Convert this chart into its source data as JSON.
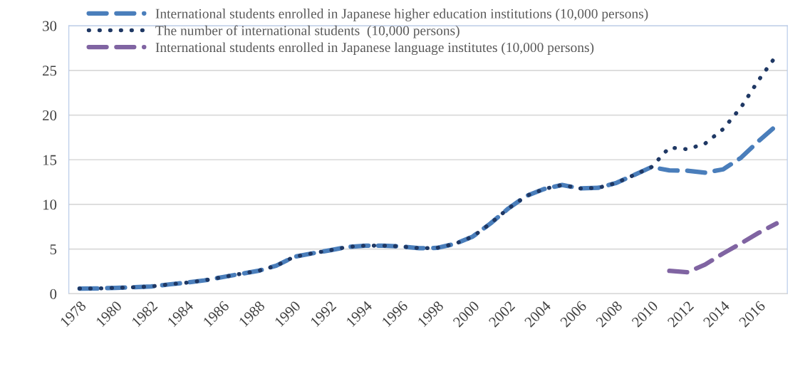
{
  "chart_data": {
    "type": "line",
    "categories": [
      "1978",
      null,
      "1980",
      null,
      "1982",
      null,
      "1984",
      null,
      "1986",
      null,
      "1988",
      null,
      "1990",
      null,
      "1992",
      null,
      "1994",
      null,
      "1996",
      null,
      "1998",
      null,
      "2000",
      null,
      "2002",
      null,
      "2004",
      null,
      "2006",
      null,
      "2008",
      null,
      "2010",
      null,
      "2012",
      null,
      "2014",
      null,
      "2016",
      null
    ],
    "series": [
      {
        "name": "International students enrolled in Japanese higher education institutions (10,000 persons)",
        "color": "#4a7ebb",
        "line_style": "dashed",
        "values": [
          0.58,
          0.59,
          0.66,
          0.72,
          0.81,
          1.04,
          1.24,
          1.5,
          1.86,
          2.22,
          2.56,
          3.13,
          4.13,
          4.51,
          4.86,
          5.24,
          5.38,
          5.38,
          5.29,
          5.1,
          5.13,
          5.58,
          6.4,
          7.88,
          9.56,
          10.95,
          11.73,
          12.18,
          11.79,
          11.85,
          12.38,
          13.27,
          14.18,
          13.81,
          13.78,
          13.55,
          13.92,
          15.21,
          17.11,
          18.84
        ]
      },
      {
        "name": "The number of international students  (10,000 persons)",
        "color": "#1f3864",
        "line_style": "dotted",
        "values": [
          0.58,
          0.59,
          0.66,
          0.72,
          0.81,
          1.04,
          1.24,
          1.5,
          1.86,
          2.22,
          2.56,
          3.13,
          4.13,
          4.51,
          4.86,
          5.24,
          5.38,
          5.38,
          5.29,
          5.1,
          5.13,
          5.58,
          6.4,
          7.88,
          9.56,
          10.95,
          11.73,
          12.18,
          11.79,
          11.85,
          12.38,
          13.27,
          14.18,
          16.37,
          16.18,
          16.81,
          18.42,
          20.84,
          23.93,
          26.7
        ]
      },
      {
        "name": "International students enrolled in Japanese language institutes (10,000 persons)",
        "color": "#8064a2",
        "line_style": "dashed",
        "values": [
          null,
          null,
          null,
          null,
          null,
          null,
          null,
          null,
          null,
          null,
          null,
          null,
          null,
          null,
          null,
          null,
          null,
          null,
          null,
          null,
          null,
          null,
          null,
          null,
          null,
          null,
          null,
          null,
          null,
          null,
          null,
          null,
          null,
          2.56,
          2.41,
          3.26,
          4.5,
          5.63,
          6.82,
          7.87
        ]
      }
    ],
    "ylim": [
      0,
      30
    ],
    "yticks": [
      0,
      5,
      10,
      15,
      20,
      25,
      30
    ],
    "grid": "y",
    "legend": "top left",
    "marker": "none"
  }
}
